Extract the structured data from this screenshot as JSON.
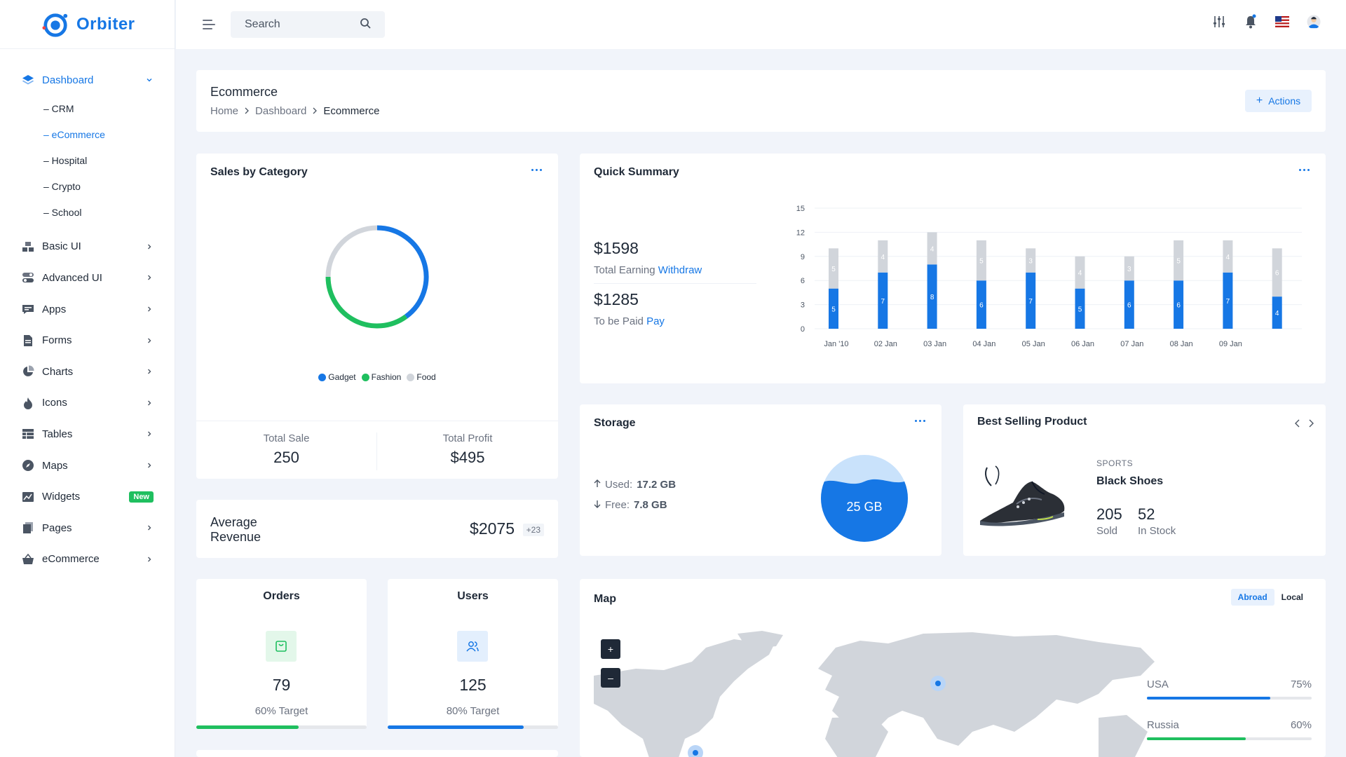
{
  "app": {
    "name": "Orbiter"
  },
  "search": {
    "placeholder": "Search"
  },
  "sidebar": {
    "dashboard": {
      "label": "Dashboard",
      "sub": [
        "– CRM",
        "– eCommerce",
        "– Hospital",
        "– Crypto",
        "– School"
      ]
    },
    "items": [
      {
        "label": "Basic UI",
        "icon": "stack-icon"
      },
      {
        "label": "Advanced UI",
        "icon": "toggle-icon"
      },
      {
        "label": "Apps",
        "icon": "chat-icon"
      },
      {
        "label": "Forms",
        "icon": "document-icon"
      },
      {
        "label": "Charts",
        "icon": "pie-chart-icon"
      },
      {
        "label": "Icons",
        "icon": "fire-icon"
      },
      {
        "label": "Tables",
        "icon": "table-icon"
      },
      {
        "label": "Maps",
        "icon": "compass-icon"
      },
      {
        "label": "Widgets",
        "icon": "widget-icon",
        "badge": "New"
      },
      {
        "label": "Pages",
        "icon": "pages-icon"
      },
      {
        "label": "eCommerce",
        "icon": "basket-icon"
      }
    ]
  },
  "header": {
    "title": "Ecommerce",
    "breadcrumb": [
      "Home",
      "Dashboard",
      "Ecommerce"
    ],
    "actions_label": "Actions"
  },
  "sales_by_category": {
    "title": "Sales by Category",
    "legend": [
      "Gadget",
      "Fashion",
      "Food"
    ],
    "total_sale_label": "Total Sale",
    "total_sale": "250",
    "total_profit_label": "Total Profit",
    "total_profit": "$495"
  },
  "quick_summary": {
    "title": "Quick Summary",
    "earning": "$1598",
    "earning_label": "Total Earning",
    "withdraw": "Withdraw",
    "to_pay": "$1285",
    "to_pay_label": "To be Paid",
    "pay": "Pay"
  },
  "average_revenue": {
    "label_line1": "Average",
    "label_line2": "Revenue",
    "value": "$2075",
    "delta": "+23"
  },
  "storage": {
    "title": "Storage",
    "used_label": "Used:",
    "used": "17.2 GB",
    "free_label": "Free:",
    "free": "7.8 GB",
    "total": "25 GB"
  },
  "best_selling": {
    "title": "Best Selling Product",
    "category": "SPORTS",
    "name": "Black Shoes",
    "sold": "205",
    "sold_label": "Sold",
    "stock": "52",
    "stock_label": "In Stock"
  },
  "orders": {
    "title": "Orders",
    "value": "79",
    "target": "60% Target",
    "progress": 60
  },
  "users": {
    "title": "Users",
    "value": "125",
    "target": "80% Target",
    "progress": 80
  },
  "map": {
    "title": "Map",
    "tabs": [
      "Abroad",
      "Local"
    ],
    "countries": [
      {
        "name": "USA",
        "pct_label": "75%",
        "pct": 75,
        "color": "#1677e5"
      },
      {
        "name": "Russia",
        "pct_label": "60%",
        "pct": 60,
        "color": "#1fbf5f"
      }
    ]
  },
  "colors": {
    "primary": "#1677e5",
    "success": "#1fbf5f",
    "muted_bar": "#d1d5db"
  },
  "chart_data": [
    {
      "type": "pie",
      "categories": [
        "Gadget",
        "Fashion",
        "Food"
      ],
      "values": [
        40,
        35,
        25
      ],
      "colors": [
        "#1677e5",
        "#1fbf5f",
        "#d1d5db"
      ]
    },
    {
      "type": "bar",
      "stacked": true,
      "categories": [
        "Jan '10",
        "02 Jan",
        "03 Jan",
        "04 Jan",
        "05 Jan",
        "06 Jan",
        "07 Jan",
        "08 Jan",
        "09 Jan",
        ""
      ],
      "series": [
        {
          "values": [
            5,
            7,
            8,
            6,
            7,
            5,
            6,
            6,
            7,
            4
          ],
          "color": "#1677e5"
        },
        {
          "values": [
            5,
            4,
            4,
            5,
            3,
            4,
            3,
            5,
            4,
            6
          ],
          "color": "#d1d5db"
        }
      ],
      "yticks": [
        "0",
        "3",
        "6",
        "9",
        "12",
        "15"
      ],
      "ylim": [
        0,
        15
      ],
      "grid": true
    }
  ]
}
